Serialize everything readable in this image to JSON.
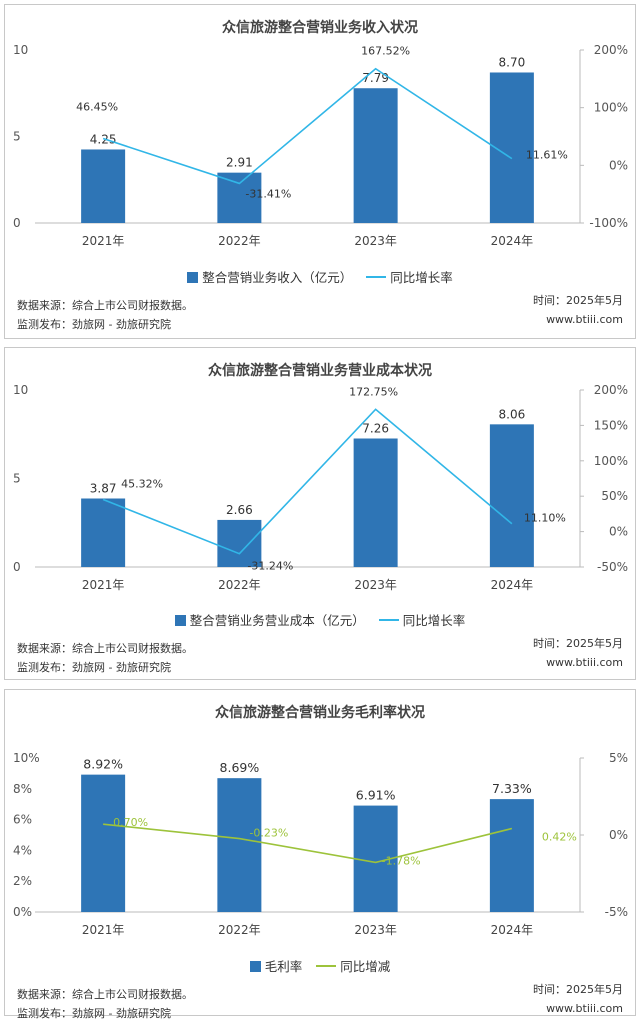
{
  "chart_data": [
    {
      "type": "bar",
      "title": "众信旅游整合营销业务收入状况",
      "categories": [
        "2021年",
        "2022年",
        "2023年",
        "2024年"
      ],
      "ylim": [
        0,
        10
      ],
      "yticks": [
        "0",
        "5",
        "10"
      ],
      "y2lim": [
        -100,
        200
      ],
      "y2ticks": [
        "-100%",
        "0%",
        "100%",
        "200%"
      ],
      "series": [
        {
          "name": "整合营销业务收入（亿元）",
          "type": "bar",
          "values": [
            4.25,
            2.91,
            7.79,
            8.7
          ],
          "labels": [
            "4.25",
            "2.91",
            "7.79",
            "8.70"
          ]
        },
        {
          "name": "同比增长率",
          "type": "line",
          "axis": "right",
          "values": [
            46.45,
            -31.41,
            167.52,
            11.61
          ],
          "labels": [
            "46.45%",
            "-31.41%",
            "167.52%",
            "11.61%"
          ]
        }
      ],
      "colors": {
        "bar": "#2e75b6",
        "line": "#31b6e7"
      },
      "source": [
        "数据来源：综合上市公司财报数据。",
        "监测发布：劲旅网 - 劲旅研究院"
      ],
      "meta": [
        "时间：2025年5月",
        "www.btiii.com"
      ]
    },
    {
      "type": "bar",
      "title": "众信旅游整合营销业务营业成本状况",
      "categories": [
        "2021年",
        "2022年",
        "2023年",
        "2024年"
      ],
      "ylim": [
        0,
        10
      ],
      "yticks": [
        "0",
        "5",
        "10"
      ],
      "y2lim": [
        -50,
        200
      ],
      "y2ticks": [
        "-50%",
        "0%",
        "50%",
        "100%",
        "150%",
        "200%"
      ],
      "series": [
        {
          "name": "整合营销业务营业成本（亿元）",
          "type": "bar",
          "values": [
            3.87,
            2.66,
            7.26,
            8.06
          ],
          "labels": [
            "3.87",
            "2.66",
            "7.26",
            "8.06"
          ]
        },
        {
          "name": "同比增长率",
          "type": "line",
          "axis": "right",
          "values": [
            45.32,
            -31.24,
            172.75,
            11.1
          ],
          "labels": [
            "45.32%",
            "-31.24%",
            "172.75%",
            "11.10%"
          ]
        }
      ],
      "colors": {
        "bar": "#2e75b6",
        "line": "#31b6e7"
      },
      "source": [
        "数据来源：综合上市公司财报数据。",
        "监测发布：劲旅网 - 劲旅研究院"
      ],
      "meta": [
        "时间：2025年5月",
        "www.btiii.com"
      ]
    },
    {
      "type": "bar",
      "title": "众信旅游整合营销业务毛利率状况",
      "categories": [
        "2021年",
        "2022年",
        "2023年",
        "2024年"
      ],
      "ylim": [
        0,
        10
      ],
      "yticks": [
        "0%",
        "2%",
        "4%",
        "6%",
        "8%",
        "10%"
      ],
      "y2lim": [
        -5,
        5
      ],
      "y2ticks": [
        "-5%",
        "0%",
        "5%"
      ],
      "series": [
        {
          "name": "毛利率",
          "type": "bar",
          "values": [
            8.92,
            8.69,
            6.91,
            7.33
          ],
          "labels": [
            "8.92%",
            "8.69%",
            "6.91%",
            "7.33%"
          ]
        },
        {
          "name": "同比增减",
          "type": "line",
          "axis": "right",
          "values": [
            0.7,
            -0.23,
            -1.78,
            0.42
          ],
          "labels": [
            "0.70%",
            "-0.23%",
            "-1.78%",
            "0.42%"
          ]
        }
      ],
      "colors": {
        "bar": "#2e75b6",
        "line": "#9dc33b"
      },
      "source": [
        "数据来源：综合上市公司财报数据。",
        "监测发布：劲旅网 - 劲旅研究院"
      ],
      "meta": [
        "时间：2025年5月",
        "www.btiii.com"
      ]
    }
  ]
}
